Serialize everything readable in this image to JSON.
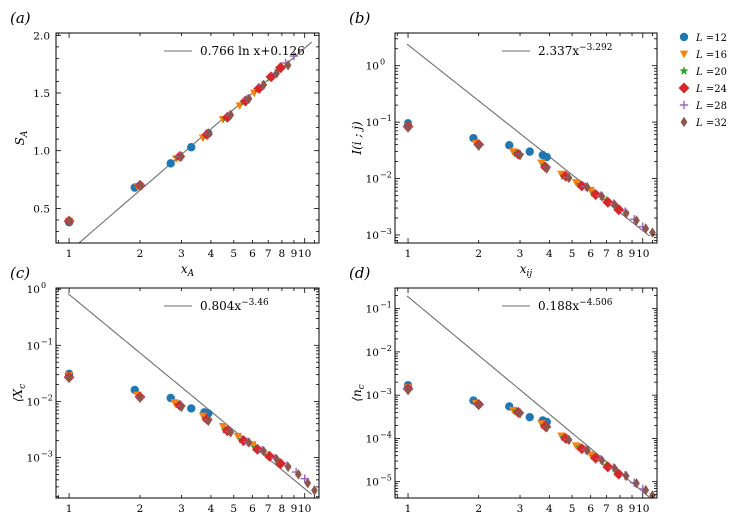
{
  "series_styles": [
    {
      "L": "12",
      "color": "#1f77b4",
      "marker": "circle"
    },
    {
      "L": "16",
      "color": "#ff7f0e",
      "marker": "triangle-down"
    },
    {
      "L": "20",
      "color": "#2ca02c",
      "marker": "star"
    },
    {
      "L": "24",
      "color": "#d62728",
      "marker": "diamond"
    },
    {
      "L": "28",
      "color": "#9467bd",
      "marker": "plus"
    },
    {
      "L": "32",
      "color": "#8c564b",
      "marker": "thin-diamond"
    }
  ],
  "legend": {
    "prefix": "L =",
    "items": [
      "12",
      "16",
      "20",
      "24",
      "28",
      "32"
    ]
  },
  "chart_data": [
    {
      "type": "scatter",
      "panel_label": "(a)",
      "xscale": "log",
      "yscale": "linear",
      "xlim": [
        0.88,
        11.5
      ],
      "ylim": [
        0.2,
        2.02
      ],
      "xlabel": "x",
      "xlabel_sub": "A",
      "ylabel": "S",
      "ylabel_sub": "A",
      "xticks": [
        1,
        2,
        3,
        4,
        5,
        6,
        7,
        8,
        9,
        10
      ],
      "yticks": [
        0.5,
        1.0,
        1.5,
        2.0
      ],
      "ytick_labels": [
        "0.5",
        "1.0",
        "1.5",
        "2.0"
      ],
      "fit_label": "0.766 ln x+0.126",
      "fit": {
        "form": "a*ln(x)+b",
        "a": 0.766,
        "b": 0.126
      },
      "series": [
        {
          "L": "12",
          "x": [
            1.0,
            1.9,
            2.7,
            3.3,
            3.9
          ],
          "y": [
            0.38,
            0.68,
            0.89,
            1.03,
            1.15
          ]
        },
        {
          "L": "16",
          "x": [
            1.0,
            1.95,
            2.85,
            3.7,
            4.5,
            5.3,
            6.1
          ],
          "y": [
            0.39,
            0.69,
            0.93,
            1.11,
            1.27,
            1.39,
            1.5
          ]
        },
        {
          "L": "20",
          "x": [
            1.0,
            2.0,
            2.9,
            3.8,
            4.6,
            5.5,
            6.3,
            7.1,
            7.8
          ],
          "y": [
            0.39,
            0.69,
            0.94,
            1.13,
            1.28,
            1.42,
            1.53,
            1.63,
            1.71
          ]
        },
        {
          "L": "24",
          "x": [
            1.0,
            2.0,
            2.95,
            3.85,
            4.7,
            5.6,
            6.4,
            7.2,
            7.9
          ],
          "y": [
            0.39,
            0.7,
            0.95,
            1.14,
            1.29,
            1.43,
            1.54,
            1.64,
            1.72
          ]
        },
        {
          "L": "28",
          "x": [
            1.0,
            2.0,
            2.95,
            3.9,
            4.8,
            5.7,
            6.6,
            7.5,
            8.3,
            9.0
          ],
          "y": [
            0.39,
            0.7,
            0.95,
            1.15,
            1.31,
            1.45,
            1.57,
            1.67,
            1.76,
            1.82
          ]
        },
        {
          "L": "32",
          "x": [
            1.0,
            2.0,
            3.0,
            3.9,
            4.85,
            5.8,
            6.7,
            7.6,
            8.5
          ],
          "y": [
            0.39,
            0.7,
            0.95,
            1.15,
            1.31,
            1.45,
            1.57,
            1.67,
            1.74
          ]
        }
      ]
    },
    {
      "type": "scatter",
      "panel_label": "(b)",
      "xscale": "log",
      "yscale": "log",
      "xlim": [
        0.88,
        11.5
      ],
      "ylim": [
        0.00072,
        3.8
      ],
      "xlabel": "x",
      "xlabel_sub": "ij",
      "ylabel": "I(i ; j)",
      "ylabel_sub": "",
      "xticks": [
        1,
        2,
        3,
        4,
        5,
        6,
        7,
        8,
        9,
        10
      ],
      "yticks": [
        0.001,
        0.01,
        0.1,
        1.0
      ],
      "ytick_labels": [
        "10",
        "10",
        "10",
        "10"
      ],
      "ytick_exps": [
        "−3",
        "−2",
        "−1",
        "0"
      ],
      "fit_label": "2.337x",
      "fit_exp": "−3.292",
      "fit": {
        "form": "a*x^b",
        "a": 2.337,
        "b": -3.292
      },
      "series": [
        {
          "L": "12",
          "x": [
            1.0,
            1.9,
            2.7,
            3.3,
            3.75,
            3.9
          ],
          "y": [
            0.095,
            0.052,
            0.039,
            0.03,
            0.026,
            0.024
          ]
        },
        {
          "L": "16",
          "x": [
            1.0,
            1.95,
            2.8,
            3.7,
            4.5,
            5.2,
            6.0
          ],
          "y": [
            0.085,
            0.042,
            0.03,
            0.019,
            0.012,
            0.0085,
            0.0062
          ]
        },
        {
          "L": "20",
          "x": [
            1.0,
            2.0,
            2.9,
            3.8,
            4.6,
            5.4,
            6.2,
            7.0,
            7.8
          ],
          "y": [
            0.083,
            0.04,
            0.028,
            0.017,
            0.011,
            0.0078,
            0.0055,
            0.0041,
            0.0031
          ]
        },
        {
          "L": "24",
          "x": [
            1.0,
            2.0,
            2.95,
            3.85,
            4.7,
            5.5,
            6.3,
            7.1,
            7.9
          ],
          "y": [
            0.083,
            0.04,
            0.027,
            0.016,
            0.011,
            0.0074,
            0.0052,
            0.0038,
            0.0028
          ]
        },
        {
          "L": "28",
          "x": [
            1.0,
            2.0,
            3.0,
            3.9,
            4.8,
            5.7,
            6.6,
            7.5,
            8.4,
            9.2,
            10.0
          ],
          "y": [
            0.082,
            0.039,
            0.027,
            0.016,
            0.0105,
            0.0072,
            0.005,
            0.0036,
            0.0026,
            0.0019,
            0.0014
          ]
        },
        {
          "L": "32",
          "x": [
            1.0,
            2.0,
            3.0,
            3.9,
            4.85,
            5.8,
            6.7,
            7.6,
            8.5,
            9.4,
            10.3,
            11.0
          ],
          "y": [
            0.08,
            0.038,
            0.026,
            0.015,
            0.0102,
            0.007,
            0.0048,
            0.0034,
            0.0024,
            0.0018,
            0.0013,
            0.0011
          ]
        }
      ]
    },
    {
      "type": "scatter",
      "panel_label": "(c)",
      "xscale": "log",
      "yscale": "log",
      "xlim": [
        0.88,
        11.5
      ],
      "ylim": [
        0.00019,
        1.05
      ],
      "xlabel": "x",
      "xlabel_sub": "ij",
      "ylabel": "⟨X",
      "ylabel_sub": "c",
      "xticks": [
        1,
        2,
        3,
        4,
        5,
        6,
        7,
        8,
        9,
        10
      ],
      "yticks": [
        0.001,
        0.01,
        0.1,
        1.0
      ],
      "ytick_labels": [
        "10",
        "10",
        "10",
        "10"
      ],
      "ytick_exps": [
        "−3",
        "−2",
        "−1",
        "0"
      ],
      "fit_label": "0.804x",
      "fit_exp": "−3.46",
      "fit": {
        "form": "a*x^b",
        "a": 0.804,
        "b": -3.46
      },
      "series": [
        {
          "L": "12",
          "x": [
            1.0,
            1.9,
            2.7,
            3.3,
            3.75,
            3.9
          ],
          "y": [
            0.031,
            0.016,
            0.0115,
            0.0075,
            0.0064,
            0.0061
          ]
        },
        {
          "L": "16",
          "x": [
            1.0,
            1.95,
            2.8,
            3.7,
            4.5,
            5.2,
            6.0
          ],
          "y": [
            0.029,
            0.013,
            0.0095,
            0.0055,
            0.0036,
            0.0024,
            0.0017
          ]
        },
        {
          "L": "20",
          "x": [
            1.0,
            2.0,
            2.9,
            3.8,
            4.6,
            5.4,
            6.2,
            7.0,
            7.8
          ],
          "y": [
            0.028,
            0.012,
            0.0088,
            0.005,
            0.0031,
            0.0021,
            0.0015,
            0.0011,
            0.00082
          ]
        },
        {
          "L": "24",
          "x": [
            1.0,
            2.0,
            2.95,
            3.85,
            4.7,
            5.5,
            6.3,
            7.1,
            7.9
          ],
          "y": [
            0.027,
            0.012,
            0.0085,
            0.0048,
            0.003,
            0.002,
            0.0014,
            0.00105,
            0.00078
          ]
        },
        {
          "L": "28",
          "x": [
            1.0,
            2.0,
            3.0,
            3.9,
            4.8,
            5.7,
            6.6,
            7.5,
            8.4,
            9.2,
            10.0
          ],
          "y": [
            0.027,
            0.0118,
            0.0083,
            0.0047,
            0.0029,
            0.0019,
            0.00135,
            0.00098,
            0.00072,
            0.00055,
            0.00042
          ]
        },
        {
          "L": "32",
          "x": [
            1.0,
            2.0,
            3.0,
            3.9,
            4.85,
            5.8,
            6.7,
            7.6,
            8.5,
            9.4,
            10.3,
            11.0
          ],
          "y": [
            0.026,
            0.0115,
            0.008,
            0.0045,
            0.0028,
            0.00185,
            0.0013,
            0.00093,
            0.00068,
            0.0005,
            0.00035,
            0.00026
          ]
        }
      ]
    },
    {
      "type": "scatter",
      "panel_label": "(d)",
      "xscale": "log",
      "yscale": "log",
      "xlim": [
        0.88,
        11.5
      ],
      "ylim": [
        4.2e-06,
        0.3
      ],
      "xlabel": "x",
      "xlabel_sub": "ij",
      "ylabel": "⟨n",
      "ylabel_sub": "c",
      "xticks": [
        1,
        2,
        3,
        4,
        5,
        6,
        7,
        8,
        9,
        10
      ],
      "yticks": [
        1e-05,
        0.0001,
        0.001,
        0.01,
        0.1
      ],
      "ytick_labels": [
        "10",
        "10",
        "10",
        "10",
        "10"
      ],
      "ytick_exps": [
        "−5",
        "−4",
        "−3",
        "−2",
        "−1"
      ],
      "fit_label": "0.188x",
      "fit_exp": "−4.506",
      "fit": {
        "form": "a*x^b",
        "a": 0.188,
        "b": -4.506
      },
      "series": [
        {
          "L": "12",
          "x": [
            1.0,
            1.9,
            2.7,
            3.3,
            3.75,
            3.9
          ],
          "y": [
            0.0017,
            0.00075,
            0.00055,
            0.00031,
            0.00026,
            0.00024
          ]
        },
        {
          "L": "16",
          "x": [
            1.0,
            1.95,
            2.8,
            3.7,
            4.5,
            5.2,
            6.0
          ],
          "y": [
            0.0015,
            0.00065,
            0.00045,
            0.00022,
            0.000115,
            6.8e-05,
            4.2e-05
          ]
        },
        {
          "L": "20",
          "x": [
            1.0,
            2.0,
            2.9,
            3.8,
            4.6,
            5.4,
            6.2,
            7.0,
            7.8
          ],
          "y": [
            0.0014,
            0.00062,
            0.00042,
            0.0002,
            0.000105,
            6.2e-05,
            3.8e-05,
            2.4e-05,
            1.6e-05
          ]
        },
        {
          "L": "24",
          "x": [
            1.0,
            2.0,
            2.95,
            3.85,
            4.7,
            5.5,
            6.3,
            7.1,
            7.9
          ],
          "y": [
            0.0014,
            0.00061,
            0.0004,
            0.00019,
            0.0001,
            5.8e-05,
            3.5e-05,
            2.2e-05,
            1.5e-05
          ]
        },
        {
          "L": "28",
          "x": [
            1.0,
            2.0,
            3.0,
            3.9,
            4.8,
            5.7,
            6.6,
            7.5,
            8.4,
            9.2,
            10.0
          ],
          "y": [
            0.0014,
            0.0006,
            0.00039,
            0.00018,
            9.5e-05,
            5.5e-05,
            3.3e-05,
            2.1e-05,
            1.4e-05,
            9.5e-06,
            6.8e-06
          ]
        },
        {
          "L": "32",
          "x": [
            1.0,
            2.0,
            3.0,
            3.9,
            4.85,
            5.8,
            6.7,
            7.6,
            8.5,
            9.4,
            10.3,
            11.0
          ],
          "y": [
            0.0013,
            0.00059,
            0.00038,
            0.00018,
            9.2e-05,
            5.3e-05,
            3.1e-05,
            2e-05,
            1.35e-05,
            9.2e-06,
            6.4e-06,
            4.8e-06
          ]
        }
      ]
    }
  ]
}
